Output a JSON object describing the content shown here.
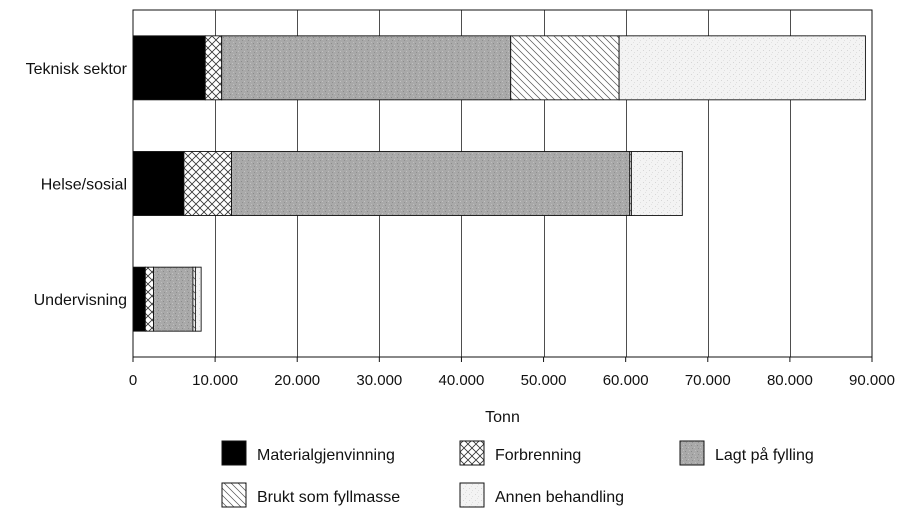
{
  "chart_data": {
    "type": "bar",
    "orientation": "horizontal",
    "stacked": true,
    "title": "",
    "xlabel": "Tonn",
    "ylabel": "",
    "xlim": [
      0,
      90000
    ],
    "x_tick_values": [
      0,
      10000,
      20000,
      30000,
      40000,
      50000,
      60000,
      70000,
      80000,
      90000
    ],
    "x_tick_labels": [
      "0",
      "10.000",
      "20.000",
      "30.000",
      "40.000",
      "50.000",
      "60.000",
      "70.000",
      "80.000",
      "90.000"
    ],
    "grid": "vertical",
    "legend_position": "bottom",
    "categories": [
      "Teknisk sektor",
      "Helse/sosial",
      "Undervisning"
    ],
    "series": [
      {
        "name": "Materialgjenvinning",
        "pattern": "solid-black",
        "values": [
          8800,
          6200,
          1500
        ]
      },
      {
        "name": "Forbrenning",
        "pattern": "crosshatch",
        "values": [
          2000,
          5800,
          1000
        ]
      },
      {
        "name": "Lagt på fylling",
        "pattern": "gray-stipple",
        "values": [
          35200,
          48500,
          4800
        ]
      },
      {
        "name": "Brukt som fyllmasse",
        "pattern": "diagonal-hatch",
        "values": [
          13200,
          200,
          300
        ]
      },
      {
        "name": "Annen behandling",
        "pattern": "light-stipple",
        "values": [
          30000,
          6200,
          700
        ]
      }
    ]
  }
}
